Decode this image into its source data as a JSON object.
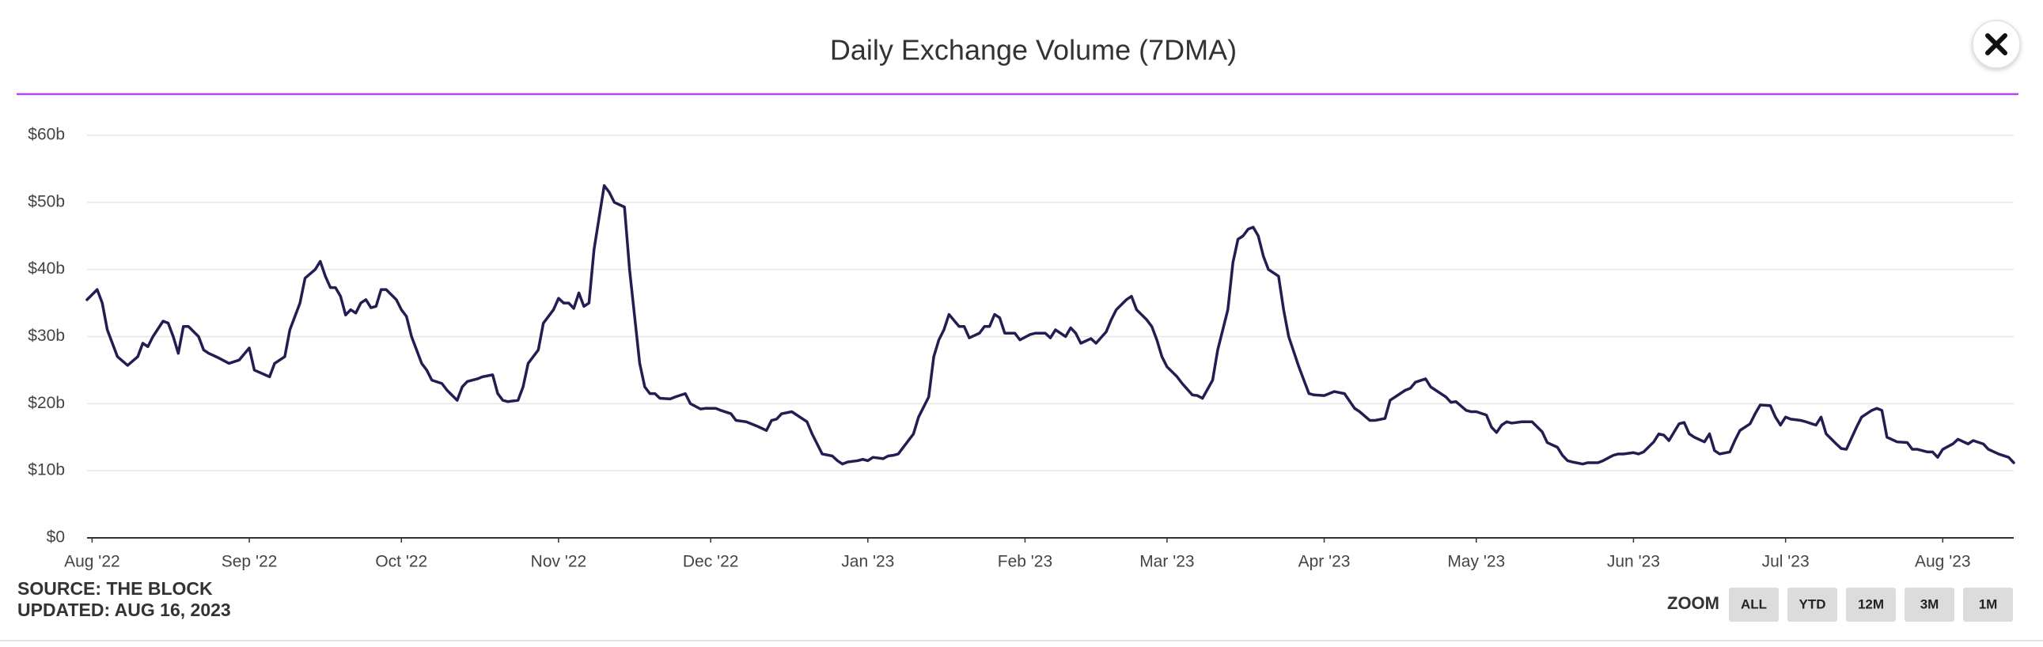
{
  "chart_data": {
    "type": "line",
    "title": "Daily Exchange Volume (7DMA)",
    "color": "#231d52",
    "grid": true,
    "x": [
      -1,
      1,
      2,
      3,
      5,
      7,
      9,
      10,
      11,
      12,
      14,
      15,
      16,
      17,
      18,
      19,
      21,
      22,
      23,
      25,
      27,
      29,
      31,
      32,
      35,
      36,
      38,
      39,
      41,
      42,
      44,
      45,
      46,
      47,
      48,
      49,
      50,
      51,
      52,
      53,
      54,
      55,
      56,
      57,
      58,
      60,
      61,
      62,
      63,
      65,
      66,
      67,
      69,
      70,
      72,
      73,
      74,
      76,
      77,
      79,
      80,
      81,
      82,
      84,
      85,
      86,
      88,
      89,
      91,
      92,
      93,
      94,
      95,
      96,
      97,
      98,
      99,
      101,
      102,
      103,
      105,
      106,
      107,
      108,
      109,
      110,
      111,
      112,
      114,
      115,
      117,
      118,
      120,
      121,
      123,
      124,
      126,
      127,
      129,
      131,
      133,
      134,
      135,
      136,
      138,
      139,
      141,
      142,
      143,
      144,
      146,
      147,
      148,
      149,
      151,
      152,
      153,
      154,
      156,
      157,
      158,
      159,
      160,
      161,
      162,
      163,
      165,
      166,
      167,
      168,
      169,
      171,
      172,
      173,
      175,
      176,
      177,
      178,
      179,
      180,
      182,
      183,
      185,
      186,
      188,
      189,
      190,
      192,
      193,
      194,
      195,
      197,
      198,
      200,
      201,
      202,
      204,
      205,
      206,
      208,
      209,
      210,
      211,
      212,
      214,
      215,
      217,
      218,
      219,
      221,
      222,
      224,
      225,
      226,
      227,
      228,
      229,
      230,
      231,
      232,
      234,
      235,
      236,
      238,
      240,
      241,
      243,
      245,
      247,
      249,
      250,
      252,
      253,
      255,
      256,
      258,
      259,
      260,
      261,
      263,
      264,
      265,
      267,
      268,
      269,
      271,
      272,
      273,
      275,
      276,
      277,
      278,
      279,
      280,
      282,
      283,
      284,
      286,
      287,
      289,
      290,
      291,
      292,
      294,
      295,
      297,
      298,
      300,
      301,
      302,
      304,
      305,
      306,
      308,
      309,
      310,
      311,
      313,
      314,
      315,
      316,
      318,
      319,
      320,
      321,
      323,
      324,
      325,
      327,
      328,
      329,
      331,
      332,
      333,
      334,
      335,
      337,
      338,
      340,
      341,
      342,
      344,
      345,
      346,
      348,
      349,
      351,
      352,
      353,
      354,
      356,
      358,
      359,
      360,
      362,
      363,
      364,
      365,
      367,
      368,
      370,
      371,
      373,
      374,
      376,
      378,
      379
    ],
    "values": [
      35.5,
      37,
      35,
      31,
      27,
      25.7,
      27,
      29,
      28.5,
      30,
      32.3,
      32,
      30,
      27.5,
      31.5,
      31.5,
      30,
      28,
      27.5,
      26.8,
      26,
      26.5,
      28.3,
      25,
      24,
      26,
      27,
      31,
      35,
      38.7,
      40,
      41.2,
      39,
      37.3,
      37.3,
      36,
      33.2,
      34,
      33.5,
      35,
      35.5,
      34.3,
      34.5,
      37,
      37,
      35.5,
      34,
      33,
      30,
      26,
      25,
      23.5,
      23,
      22,
      20.5,
      22.5,
      23.3,
      23.7,
      24,
      24.3,
      21.5,
      20.5,
      20.3,
      20.5,
      22.5,
      26,
      28,
      32,
      34,
      35.7,
      35,
      35,
      34.2,
      36.5,
      34.5,
      35,
      43,
      52.5,
      51.5,
      50,
      49.3,
      40,
      33,
      26,
      22.5,
      21.5,
      21.5,
      20.8,
      20.7,
      21,
      21.5,
      20,
      19.2,
      19.3,
      19.3,
      19,
      18.5,
      17.5,
      17.3,
      16.7,
      16,
      17.5,
      17.7,
      18.5,
      18.8,
      18.3,
      17.3,
      15.5,
      14,
      12.5,
      12.2,
      11.5,
      11,
      11.3,
      11.5,
      11.7,
      11.5,
      12,
      11.8,
      12.2,
      12.3,
      12.5,
      13.5,
      14.5,
      15.5,
      18,
      21,
      27,
      29.5,
      31,
      33.3,
      31.5,
      31.5,
      29.8,
      30.5,
      31.5,
      31.5,
      33.3,
      32.8,
      30.5,
      30.5,
      29.5,
      30.3,
      30.5,
      30.5,
      29.8,
      31,
      30,
      31.3,
      30.5,
      29,
      29.7,
      29,
      30.7,
      32.5,
      34,
      35.5,
      36,
      34,
      32.5,
      31.5,
      29.5,
      27,
      25.5,
      24,
      23,
      21.3,
      21.2,
      20.8,
      23.5,
      28,
      34,
      41,
      44.5,
      45,
      46,
      46.3,
      45,
      42,
      40,
      39,
      34,
      30,
      25.5,
      21.5,
      21.3,
      21.2,
      21.8,
      21.5,
      19.3,
      18.8,
      17.5,
      17.5,
      17.8,
      20.5,
      21.5,
      22,
      22.3,
      23.2,
      23.7,
      22.5,
      22,
      21,
      20.2,
      20.3,
      19,
      18.8,
      18.8,
      18.3,
      16.5,
      15.7,
      16.8,
      17.3,
      17.1,
      17.3,
      17.3,
      17.3,
      15.8,
      14.2,
      13.5,
      12.3,
      11.5,
      11.3,
      11,
      11.2,
      11.2,
      11.5,
      12.3,
      12.5,
      12.5,
      12.7,
      12.5,
      12.8,
      14.3,
      15.5,
      15.3,
      14.5,
      17,
      17.2,
      15.5,
      15,
      14.3,
      15.5,
      13,
      12.5,
      12.8,
      14.5,
      16,
      17,
      18.5,
      19.8,
      19.7,
      18,
      16.8,
      18,
      17.7,
      17.5,
      17.3,
      16.8,
      18,
      15.5,
      14,
      13.3,
      13.2,
      16.5,
      18,
      19,
      19.3,
      19,
      15,
      14.3,
      14.2,
      13.2,
      13.2,
      12.8,
      12.8,
      12,
      13.2,
      14,
      14.7,
      14,
      14.5,
      14,
      13.2,
      12.5,
      12,
      11.2
    ],
    "xlim": [
      -1,
      379
    ],
    "xticks": [
      {
        "value": 0,
        "label": "Aug '22"
      },
      {
        "value": 31,
        "label": "Sep '22"
      },
      {
        "value": 61,
        "label": "Oct '22"
      },
      {
        "value": 92,
        "label": "Nov '22"
      },
      {
        "value": 122,
        "label": "Dec '22"
      },
      {
        "value": 153,
        "label": "Jan '23"
      },
      {
        "value": 184,
        "label": "Feb '23"
      },
      {
        "value": 212,
        "label": "Mar '23"
      },
      {
        "value": 243,
        "label": "Apr '23"
      },
      {
        "value": 273,
        "label": "May '23"
      },
      {
        "value": 304,
        "label": "Jun '23"
      },
      {
        "value": 334,
        "label": "Jul '23"
      },
      {
        "value": 365,
        "label": "Aug '23"
      }
    ],
    "ylim": [
      0,
      60
    ],
    "yticks": [
      {
        "value": 0,
        "label": "$0"
      },
      {
        "value": 10,
        "label": "$10b"
      },
      {
        "value": 20,
        "label": "$20b"
      },
      {
        "value": 30,
        "label": "$30b"
      },
      {
        "value": 40,
        "label": "$40b"
      },
      {
        "value": 50,
        "label": "$50b"
      },
      {
        "value": 60,
        "label": "$60b"
      }
    ]
  },
  "footer": {
    "source": "SOURCE: THE BLOCK",
    "updated": "UPDATED: AUG 16, 2023"
  },
  "zoom": {
    "label": "ZOOM",
    "buttons": [
      "ALL",
      "YTD",
      "12M",
      "3M",
      "1M"
    ]
  }
}
